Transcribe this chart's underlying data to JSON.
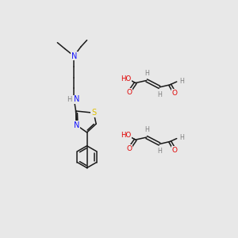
{
  "bg": "#e8e8e8",
  "bond_color": "#1a1a1a",
  "atom_colors": {
    "N": "#1414ff",
    "S": "#e0c000",
    "O": "#e00000",
    "H": "#808080",
    "C": "#1a1a1a"
  },
  "figsize": [
    3.0,
    3.0
  ],
  "dpi": 100,
  "xlim": [
    0,
    300
  ],
  "ylim": [
    0,
    300
  ],
  "lw": 1.1,
  "fontsize": 6.0
}
